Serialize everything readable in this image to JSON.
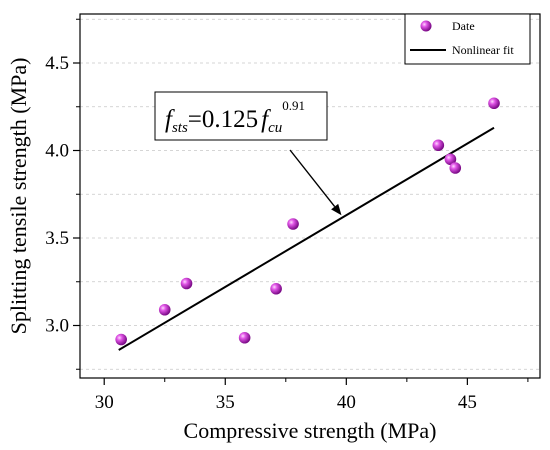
{
  "chart_data": {
    "type": "scatter",
    "xlabel": "Compressive strength (MPa)",
    "ylabel": "Splitting tensile strength (MPa)",
    "xlim": [
      29,
      48
    ],
    "ylim": [
      2.7,
      4.78
    ],
    "xticks": [
      30,
      35,
      40,
      45
    ],
    "yticks": [
      3.0,
      3.5,
      4.0,
      4.5
    ],
    "xtick_labels": [
      "30",
      "35",
      "40",
      "45"
    ],
    "ytick_labels": [
      "3.0",
      "3.5",
      "4.0",
      "4.5"
    ],
    "grid": "horizontal dashed",
    "legend": {
      "placement": "top-right",
      "entries": [
        {
          "label": "Date",
          "kind": "marker",
          "color": "#c020c8"
        },
        {
          "label": "Nonlinear fit",
          "kind": "line",
          "color": "#000000"
        }
      ]
    },
    "series": [
      {
        "name": "Date",
        "kind": "scatter",
        "color": "#c020c8",
        "x": [
          30.7,
          32.5,
          33.4,
          35.8,
          37.1,
          37.8,
          43.8,
          44.3,
          44.5,
          46.1
        ],
        "y": [
          2.92,
          3.09,
          3.24,
          2.93,
          3.21,
          3.58,
          4.03,
          3.95,
          3.9,
          4.27
        ]
      },
      {
        "name": "Nonlinear fit",
        "kind": "line",
        "color": "#000000",
        "x": [
          30.6,
          46.1
        ],
        "y": [
          2.86,
          4.13
        ]
      }
    ],
    "annotation": {
      "f1": "f",
      "sub1": "sts",
      "eq": "=0.125",
      "f2": "f",
      "sub2": "cu",
      "sup": "0.91",
      "arrow_to": {
        "x": 39.8,
        "y": 3.63
      }
    }
  }
}
